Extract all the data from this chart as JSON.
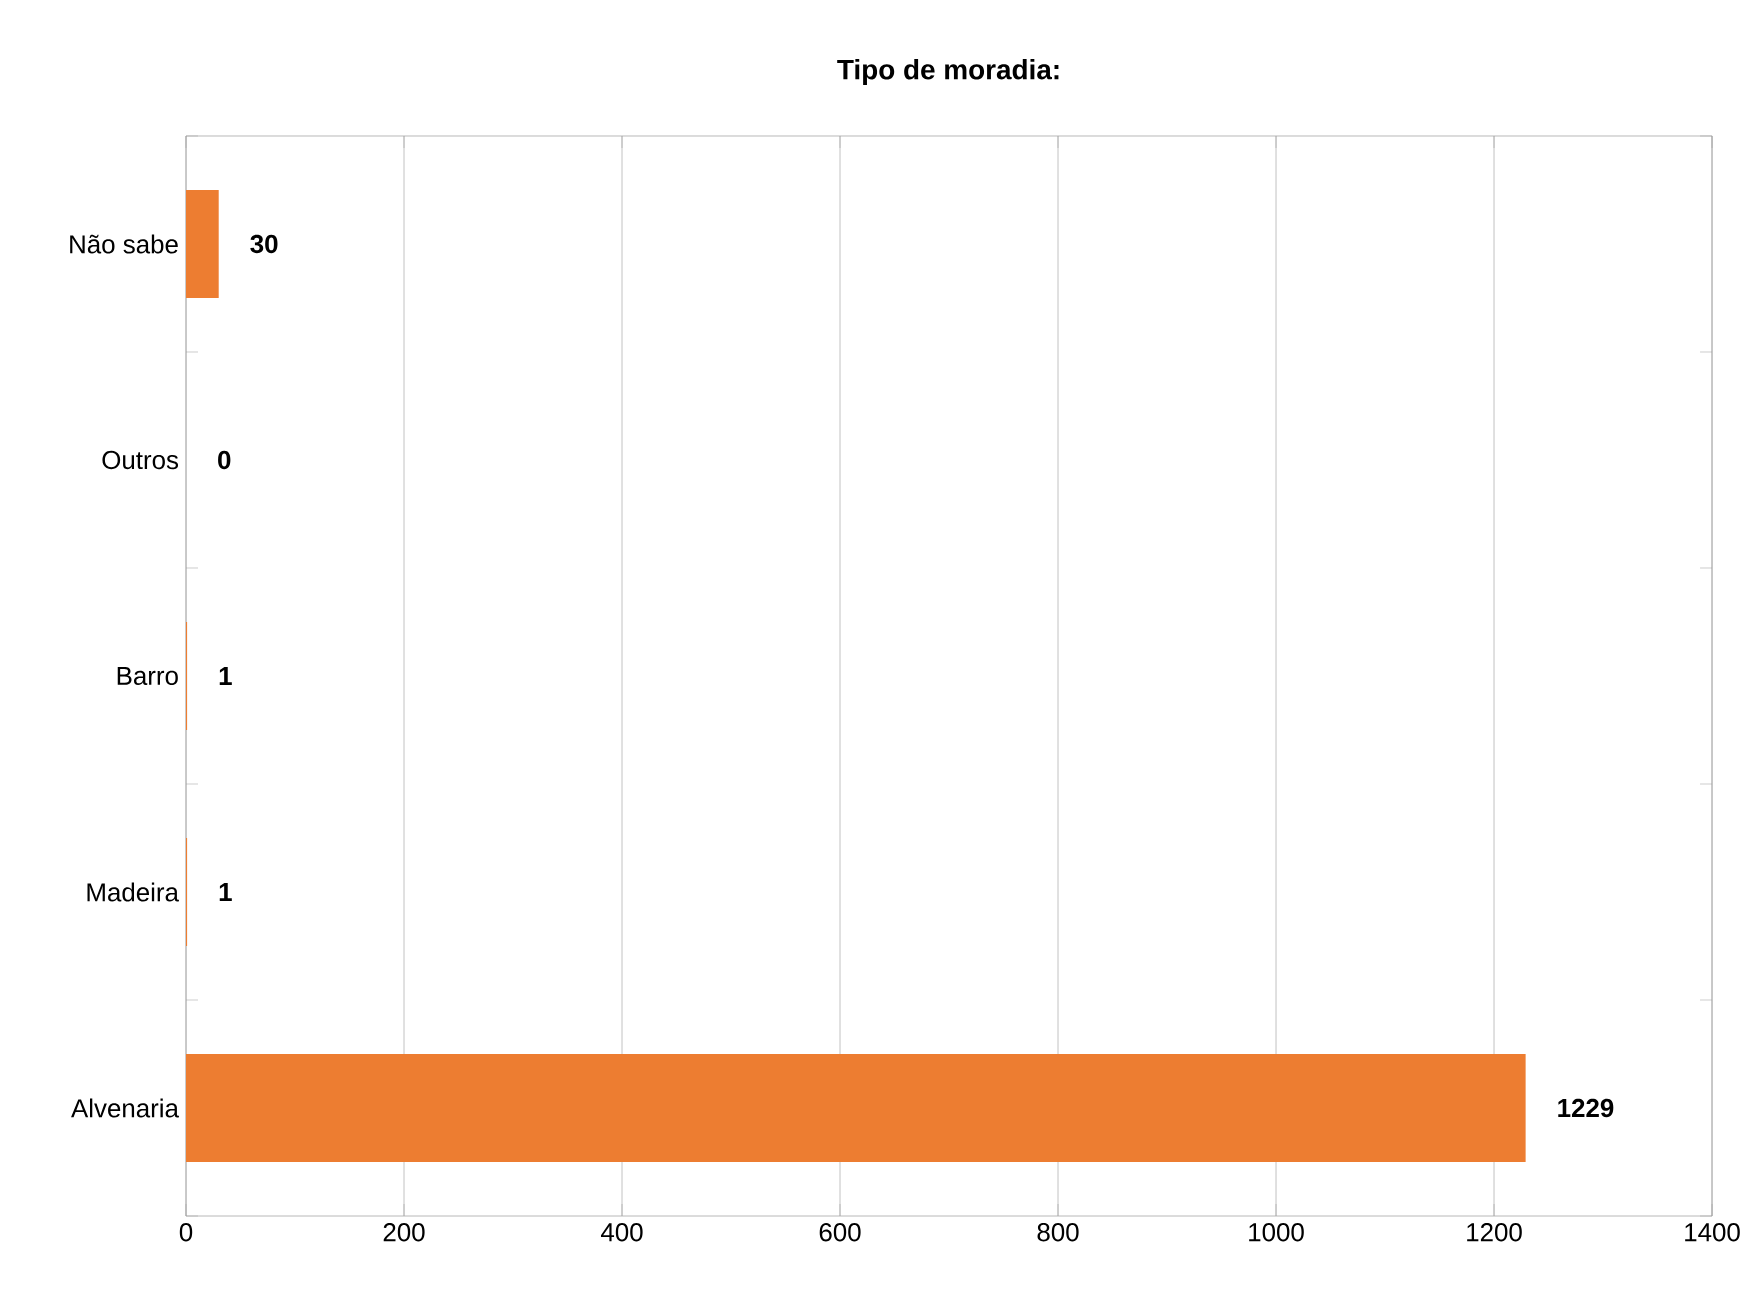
{
  "chart_data": {
    "type": "bar",
    "orientation": "horizontal",
    "title": "Tipo de moradia:",
    "categories": [
      "Não sabe",
      "Outros",
      "Barro",
      "Madeira",
      "Alvenaria"
    ],
    "values": [
      30,
      0,
      1,
      1,
      1229
    ],
    "color": "#ed7d31",
    "xlim": [
      0,
      1400
    ],
    "xticks": [
      0,
      200,
      400,
      600,
      800,
      1000,
      1200,
      1400
    ],
    "grid": "x",
    "data_labels": true
  }
}
